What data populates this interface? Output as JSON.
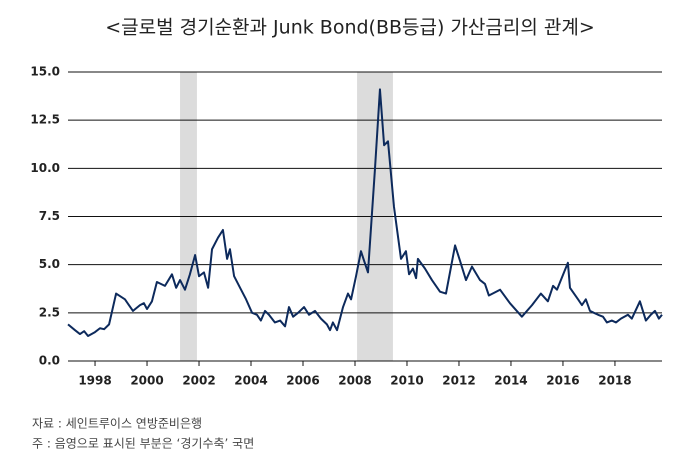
{
  "chart_data": {
    "type": "line",
    "title": "<글로벌 경기순환과 Junk Bond(BB등급) 가산금리의 관계>",
    "x": [
      1996.96,
      1997.23,
      1997.42,
      1997.58,
      1997.73,
      1998.0,
      1998.19,
      1998.35,
      1998.54,
      1998.81,
      1999.15,
      1999.46,
      1999.73,
      1999.88,
      2000.0,
      2000.19,
      2000.38,
      2000.69,
      2000.96,
      2001.12,
      2001.27,
      2001.46,
      2001.65,
      2001.85,
      2002.0,
      2002.19,
      2002.35,
      2002.5,
      2002.73,
      2002.92,
      2003.08,
      2003.19,
      2003.35,
      2003.58,
      2003.81,
      2004.04,
      2004.23,
      2004.38,
      2004.54,
      2004.69,
      2004.92,
      2005.12,
      2005.31,
      2005.46,
      2005.62,
      2005.81,
      2006.04,
      2006.23,
      2006.46,
      2006.69,
      2006.92,
      2007.04,
      2007.15,
      2007.31,
      2007.54,
      2007.73,
      2007.85,
      2008.04,
      2008.23,
      2008.35,
      2008.5,
      2008.77,
      2008.96,
      2009.12,
      2009.27,
      2009.5,
      2009.77,
      2009.96,
      2010.08,
      2010.23,
      2010.35,
      2010.42,
      2010.69,
      2010.96,
      2011.27,
      2011.5,
      2011.85,
      2012.04,
      2012.27,
      2012.5,
      2012.81,
      2013.0,
      2013.15,
      2013.58,
      2013.96,
      2014.42,
      2014.81,
      2015.15,
      2015.42,
      2015.62,
      2015.77,
      2016.19,
      2016.27,
      2016.58,
      2016.73,
      2016.88,
      2017.04,
      2017.19,
      2017.35,
      2017.54,
      2017.69,
      2017.88,
      2018.04,
      2018.23,
      2018.5,
      2018.65,
      2018.96,
      2019.19,
      2019.38,
      2019.54,
      2019.69,
      2019.81
    ],
    "series": [
      {
        "name": "Junk Bond(BB등급) 가산금리",
        "color": "#0d2a5c",
        "values": [
          1.9,
          1.6,
          1.4,
          1.55,
          1.3,
          1.5,
          1.7,
          1.65,
          1.9,
          3.5,
          3.2,
          2.6,
          2.9,
          3.0,
          2.7,
          3.1,
          4.1,
          3.9,
          4.5,
          3.8,
          4.2,
          3.7,
          4.5,
          5.5,
          4.4,
          4.6,
          3.8,
          5.8,
          6.4,
          6.8,
          5.3,
          5.8,
          4.4,
          3.8,
          3.2,
          2.5,
          2.4,
          2.1,
          2.6,
          2.4,
          2.0,
          2.1,
          1.8,
          2.8,
          2.3,
          2.5,
          2.8,
          2.4,
          2.6,
          2.2,
          1.9,
          1.6,
          2.0,
          1.6,
          2.8,
          3.5,
          3.2,
          4.4,
          5.7,
          5.2,
          4.6,
          10.0,
          14.1,
          11.2,
          11.4,
          8.0,
          5.3,
          5.7,
          4.5,
          4.8,
          4.3,
          5.3,
          4.8,
          4.2,
          3.6,
          3.5,
          6.0,
          5.2,
          4.2,
          4.9,
          4.2,
          4.0,
          3.4,
          3.7,
          3.0,
          2.3,
          2.9,
          3.5,
          3.1,
          3.9,
          3.7,
          5.1,
          3.8,
          3.2,
          2.9,
          3.2,
          2.6,
          2.5,
          2.4,
          2.3,
          2.0,
          2.1,
          2.0,
          2.2,
          2.4,
          2.2,
          3.1,
          2.1,
          2.4,
          2.6,
          2.2,
          2.4
        ]
      }
    ],
    "shaded_periods": [
      [
        2001.27,
        2001.92
      ],
      [
        2008.08,
        2009.46
      ]
    ],
    "xlim": [
      1996.96,
      2019.81
    ],
    "xticks": [
      1998,
      2000,
      2002,
      2004,
      2006,
      2008,
      2010,
      2012,
      2014,
      2016,
      2018
    ],
    "ylim": [
      0,
      15
    ],
    "yticks": [
      {
        "value": 0,
        "label": "0.0"
      },
      {
        "value": 2.5,
        "label": "2.5"
      },
      {
        "value": 5,
        "label": "5.0"
      },
      {
        "value": 7.5,
        "label": "7.5"
      },
      {
        "value": 10,
        "label": "10.0"
      },
      {
        "value": 12.5,
        "label": "12.5"
      },
      {
        "value": 15,
        "label": "15.0"
      }
    ],
    "grid": true,
    "notes": [
      "자료 : 세인트루이스 연방준비은행",
      "주 : 음영으로 표시된 부분은 ‘경기수축’ 국면"
    ]
  }
}
